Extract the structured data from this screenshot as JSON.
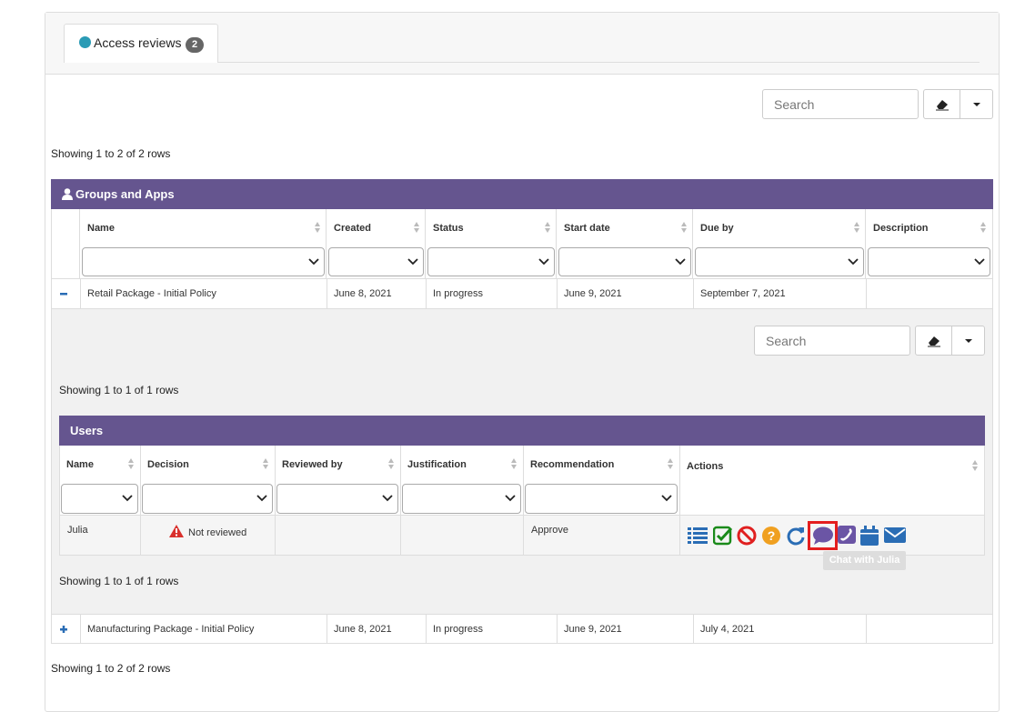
{
  "tab": {
    "label": "Access reviews",
    "badge": "2"
  },
  "toolbar": {
    "search": "Search"
  },
  "summary_top": "Showing 1 to 2 of 2 rows",
  "groups_table": {
    "title": "Groups and Apps",
    "columns": [
      "Name",
      "Created",
      "Status",
      "Start date",
      "Due by",
      "Description"
    ],
    "rows": [
      {
        "name": "Retail Package - Initial Policy",
        "created": "June 8, 2021",
        "status": "In progress",
        "start_date": "June 9, 2021",
        "due_by": "September 7, 2021"
      },
      {
        "name": "Manufacturing Package - Initial Policy",
        "created": "June 8, 2021",
        "status": "In progress",
        "start_date": "June 9, 2021",
        "due_by": "July 4, 2021"
      }
    ]
  },
  "detail": {
    "search": "Search",
    "summary_top": "Showing 1 to 1 of 1 rows",
    "users_table": {
      "title": "Users",
      "columns": [
        "Name",
        "Decision",
        "Reviewed by",
        "Justification",
        "Recommendation",
        "Actions"
      ],
      "rows": [
        {
          "name": "Julia",
          "decision": "Not reviewed",
          "recommendation": "Approve"
        }
      ]
    },
    "summary_bottom": "Showing 1 to 1 of 1 rows",
    "tooltip": "Chat with Julia"
  },
  "summary_bottom": "Showing 1 to 2 of 2 rows"
}
